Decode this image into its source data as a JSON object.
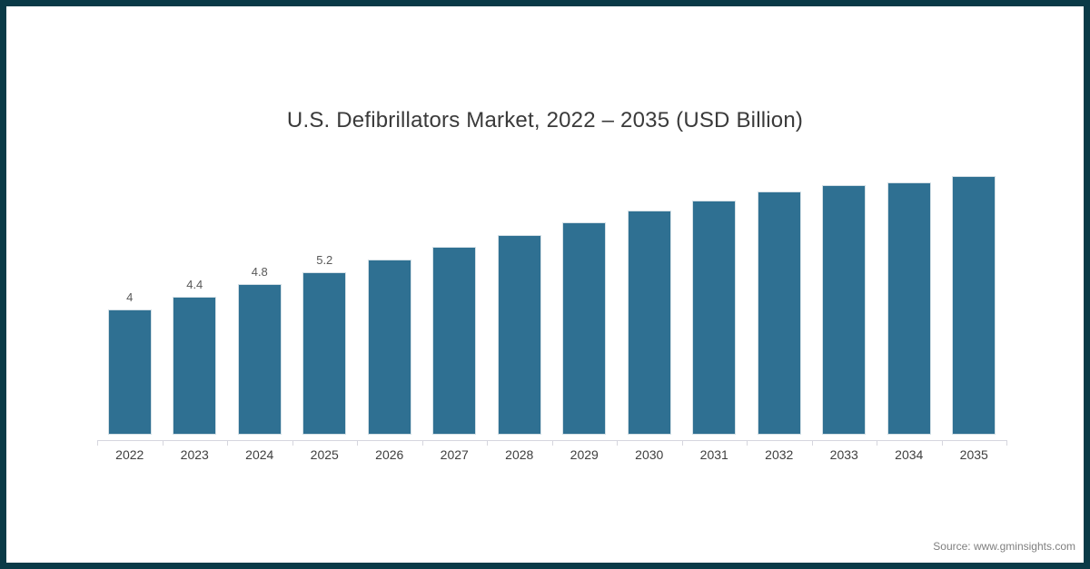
{
  "frame": {
    "border_color": "#0a3a47",
    "background": "#ffffff"
  },
  "header": {
    "title": "U.S. Defibrillators Market, 2022 – 2035 (USD Billion)"
  },
  "footer": {
    "source": "Source: www.gminsights.com"
  },
  "chart_data": {
    "type": "bar",
    "title": "U.S. Defibrillators Market, 2022 – 2035 (USD Billion)",
    "unit": "USD Billion",
    "categories": [
      "2022",
      "2023",
      "2024",
      "2025",
      "2026",
      "2027",
      "2028",
      "2029",
      "2030",
      "2031",
      "2032",
      "2033",
      "2034",
      "2035"
    ],
    "values": [
      4,
      4.4,
      4.8,
      5.2,
      5.6,
      6,
      6.4,
      6.8,
      7.2,
      7.5,
      7.8,
      8,
      8.1,
      8.3
    ],
    "data_labels": [
      "4",
      "4.4",
      "4.8",
      "5.2",
      "",
      "",
      "",
      "",
      "",
      "",
      "",
      "",
      "",
      ""
    ],
    "bar_color": "#2f7092",
    "xlabel": "",
    "ylabel": "",
    "ylim": [
      0,
      8.8
    ],
    "grid": false,
    "legend": false,
    "axis_color": "#d6d6de"
  }
}
